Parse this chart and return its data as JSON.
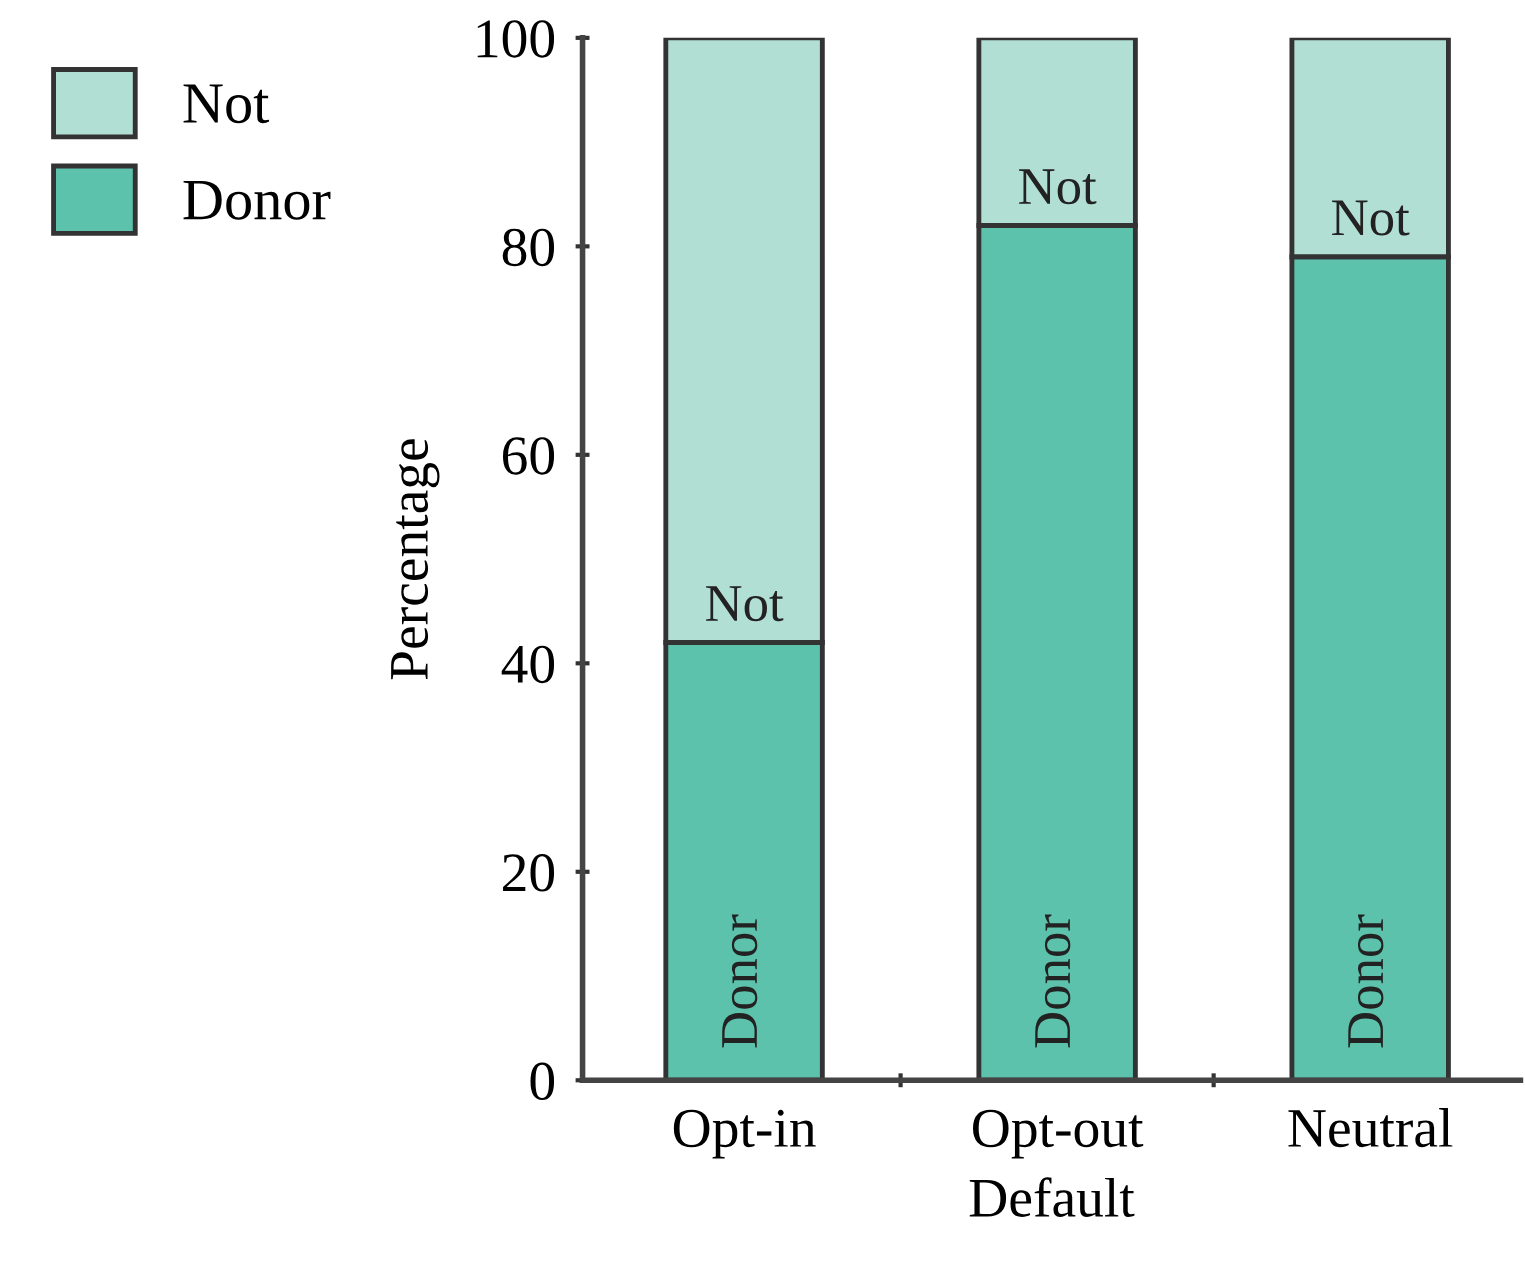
{
  "chart_data": {
    "type": "bar",
    "stacked": true,
    "xlabel": "Default",
    "ylabel": "Percentage",
    "categories": [
      "Opt-in",
      "Opt-out",
      "Neutral"
    ],
    "series": [
      {
        "name": "Donor",
        "color": "#5cc2ab",
        "values": [
          42,
          82,
          79
        ]
      },
      {
        "name": "Not",
        "color": "#b2dfd4",
        "values": [
          58,
          18,
          21
        ]
      }
    ],
    "ylim": [
      0,
      100
    ],
    "yticks": [
      0,
      20,
      40,
      60,
      80,
      100
    ],
    "grid": false,
    "legend": "top left"
  }
}
